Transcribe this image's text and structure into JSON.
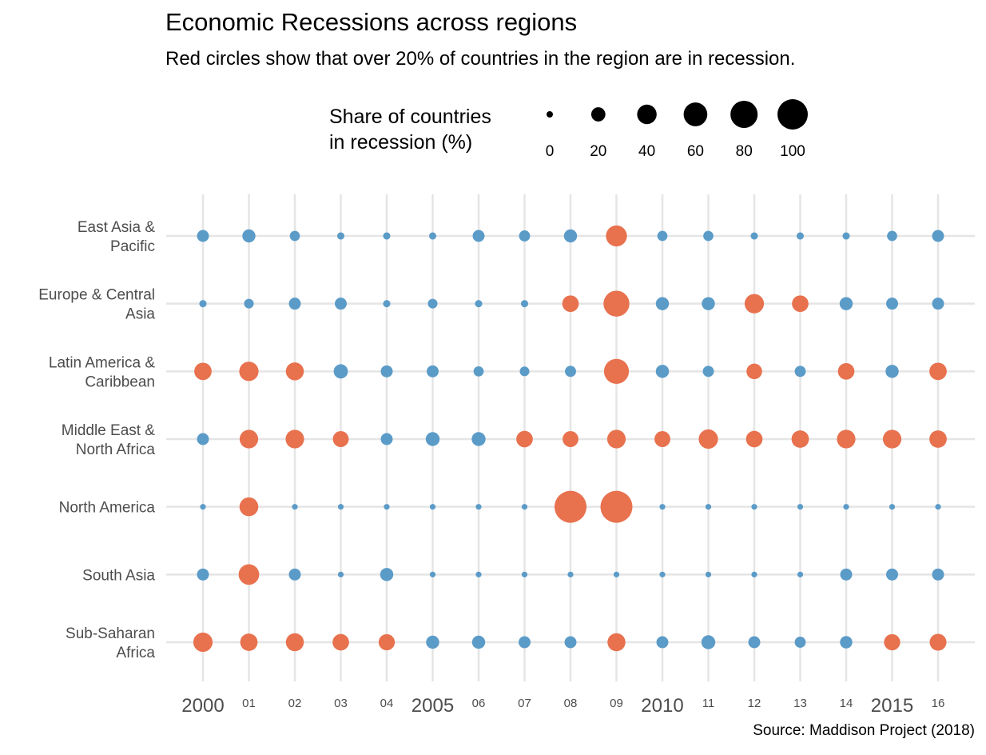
{
  "title": "Economic Recessions across regions",
  "subtitle": "Red circles show that over 20% of countries in the region are in recession.",
  "source": "Source: Maddison Project (2018)",
  "legend": {
    "title_lines": [
      "Share of countries",
      "in recession (%)"
    ],
    "values": [
      0,
      20,
      40,
      60,
      80,
      100
    ],
    "labels": [
      "0",
      "20",
      "40",
      "60",
      "80",
      "100"
    ]
  },
  "colors": {
    "above_threshold": "#e8714e",
    "below_threshold": "#5b9bc8",
    "grid": "#e5e5e5"
  },
  "chart_data": {
    "type": "scatter",
    "encoding": "circle size = share of countries in recession (%); red when over 20%",
    "threshold": 20,
    "x": [
      2000,
      2001,
      2002,
      2003,
      2004,
      2005,
      2006,
      2007,
      2008,
      2009,
      2010,
      2011,
      2012,
      2013,
      2014,
      2015,
      2016
    ],
    "x_tick_labels": [
      "2000",
      "01",
      "02",
      "03",
      "04",
      "2005",
      "06",
      "07",
      "08",
      "09",
      "2010",
      "11",
      "12",
      "13",
      "14",
      "2015",
      "16"
    ],
    "y_categories": [
      {
        "label_lines": [
          "East Asia &",
          "Pacific"
        ]
      },
      {
        "label_lines": [
          "Europe & Central",
          "Asia"
        ]
      },
      {
        "label_lines": [
          "Latin America &",
          "Caribbean"
        ]
      },
      {
        "label_lines": [
          "Middle East &",
          "North Africa"
        ]
      },
      {
        "label_lines": [
          "North America"
        ]
      },
      {
        "label_lines": [
          "South Asia"
        ]
      },
      {
        "label_lines": [
          "Sub-Saharan",
          "Africa"
        ]
      }
    ],
    "size_range": [
      0,
      100
    ],
    "series": [
      {
        "region": "East Asia & Pacific",
        "values": [
          12,
          15,
          8,
          3,
          3,
          3,
          12,
          10,
          15,
          42,
          8,
          8,
          3,
          3,
          3,
          8,
          12
        ]
      },
      {
        "region": "Europe & Central Asia",
        "values": [
          3,
          7,
          12,
          12,
          3,
          7,
          3,
          3,
          25,
          65,
          15,
          15,
          35,
          25,
          15,
          12,
          12
        ]
      },
      {
        "region": "Latin America & Caribbean",
        "values": [
          28,
          35,
          30,
          18,
          12,
          12,
          8,
          7,
          10,
          60,
          15,
          10,
          22,
          10,
          25,
          15,
          28
        ]
      },
      {
        "region": "Middle East & North Africa",
        "values": [
          12,
          32,
          32,
          23,
          12,
          17,
          17,
          25,
          23,
          32,
          23,
          35,
          25,
          28,
          32,
          32,
          28
        ]
      },
      {
        "region": "North America",
        "values": [
          1,
          33,
          1,
          1,
          1,
          1,
          1,
          1,
          100,
          100,
          1,
          1,
          1,
          1,
          1,
          1,
          1
        ]
      },
      {
        "region": "South Asia",
        "values": [
          12,
          40,
          12,
          1,
          15,
          1,
          1,
          1,
          1,
          1,
          1,
          1,
          1,
          1,
          12,
          12,
          12
        ]
      },
      {
        "region": "Sub-Saharan Africa",
        "values": [
          35,
          28,
          30,
          25,
          24,
          15,
          15,
          12,
          12,
          30,
          12,
          17,
          12,
          10,
          13,
          24,
          26
        ]
      }
    ],
    "grid": true,
    "legend_position": "top"
  }
}
